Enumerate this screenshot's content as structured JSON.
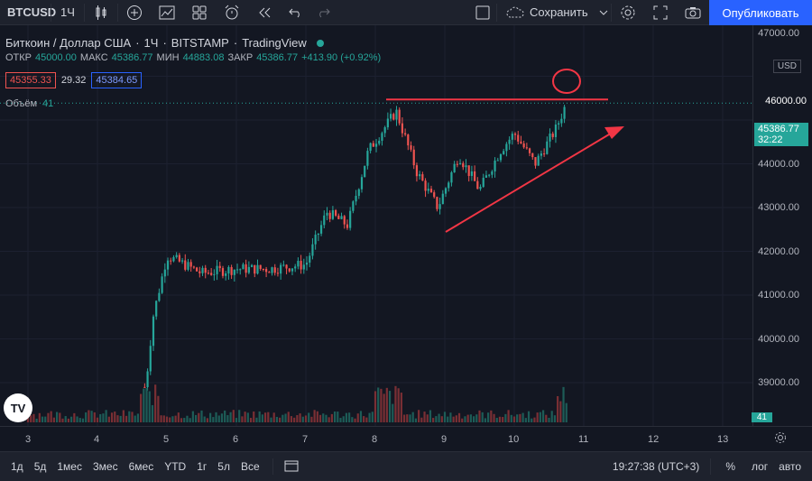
{
  "toolbar": {
    "symbol": "BTCUSD",
    "interval": "1Ч",
    "save_label": "Сохранить",
    "publish_label": "Опубликовать"
  },
  "legend": {
    "title": "Биткоин / Доллар США",
    "interval": "1Ч",
    "exchange": "BITSTAMP",
    "source": "TradingView"
  },
  "ohlc": {
    "open_label": "ОТКР",
    "open": "45000.00",
    "high_label": "МАКС",
    "high": "45386.77",
    "low_label": "МИН",
    "low": "44883.08",
    "close_label": "ЗАКР",
    "close": "45386.77",
    "change": "+413.90 (+0.92%)"
  },
  "bidask": {
    "bid": "45355.33",
    "spread": "29.32",
    "ask": "45384.65"
  },
  "volume": {
    "label": "Объём",
    "value": "41"
  },
  "price_axis": {
    "currency": "USD",
    "labels": [
      "47000.00",
      "46000.00",
      "44000.00",
      "43000.00",
      "42000.00",
      "41000.00",
      "40000.00",
      "39000.00"
    ],
    "circled_price": "46000.00",
    "current_price": "45386.77",
    "countdown": "32:22",
    "volume_tag": "41"
  },
  "time_axis": {
    "labels": [
      "3",
      "4",
      "5",
      "6",
      "7",
      "8",
      "9",
      "10",
      "11",
      "12",
      "13"
    ]
  },
  "bottombar": {
    "ranges": [
      "1д",
      "5д",
      "1мес",
      "3мес",
      "6мес",
      "YTD",
      "1г",
      "5л",
      "Все"
    ],
    "clock": "19:27:38 (UTC+3)",
    "percent": "%",
    "log": "лог",
    "auto": "авто"
  },
  "colors": {
    "up": "#26a69a",
    "down": "#ef5350",
    "accent": "#2962ff",
    "annotation": "#f23645"
  },
  "chart_data": {
    "type": "candlestick",
    "x_axis_days": [
      "3",
      "4",
      "5",
      "6",
      "7",
      "8",
      "9",
      "10",
      "11",
      "12",
      "13"
    ],
    "ylim": [
      38500,
      47500
    ],
    "key_points": [
      {
        "day": 4.7,
        "price": 39000
      },
      {
        "day": 4.8,
        "price": 40500
      },
      {
        "day": 5.0,
        "price": 41900
      },
      {
        "day": 5.5,
        "price": 41500
      },
      {
        "day": 6.0,
        "price": 41600
      },
      {
        "day": 6.5,
        "price": 41600
      },
      {
        "day": 7.0,
        "price": 41700
      },
      {
        "day": 7.3,
        "price": 42900
      },
      {
        "day": 7.6,
        "price": 42600
      },
      {
        "day": 7.9,
        "price": 44300
      },
      {
        "day": 8.3,
        "price": 45200
      },
      {
        "day": 8.6,
        "price": 43800
      },
      {
        "day": 8.9,
        "price": 43000
      },
      {
        "day": 9.2,
        "price": 44200
      },
      {
        "day": 9.5,
        "price": 43400
      },
      {
        "day": 9.8,
        "price": 44300
      },
      {
        "day": 10.0,
        "price": 44700
      },
      {
        "day": 10.3,
        "price": 44000
      },
      {
        "day": 10.6,
        "price": 44800
      },
      {
        "day": 10.75,
        "price": 45386.77
      }
    ]
  }
}
